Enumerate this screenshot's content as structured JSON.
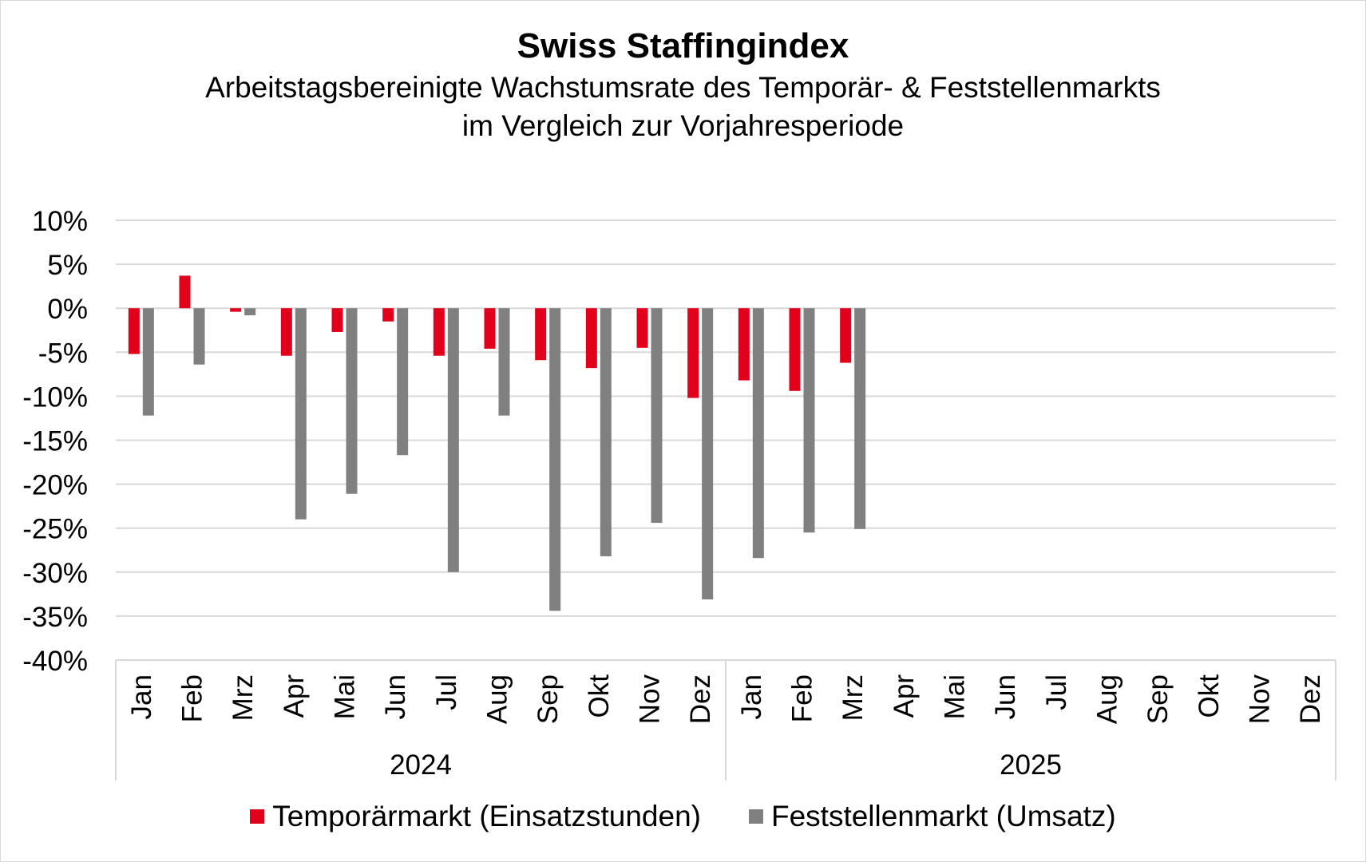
{
  "chart_data": {
    "type": "bar",
    "title": "Swiss Staffingindex",
    "subtitle_line1": "Arbeitstagsbereinigte Wachstumsrate des Temporär- & Feststellenmarkts",
    "subtitle_line2": "im Vergleich zur Vorjahresperiode",
    "categories": [
      "Jan",
      "Feb",
      "Mrz",
      "Apr",
      "Mai",
      "Jun",
      "Jul",
      "Aug",
      "Sep",
      "Okt",
      "Nov",
      "Dez",
      "Jan",
      "Feb",
      "Mrz",
      "Apr",
      "Mai",
      "Jun",
      "Jul",
      "Aug",
      "Sep",
      "Okt",
      "Nov",
      "Dez"
    ],
    "groups": [
      {
        "label": "2024",
        "count": 12
      },
      {
        "label": "2025",
        "count": 12
      }
    ],
    "series": [
      {
        "name": "Temporärmarkt (Einsatzstunden)",
        "color": "#e3001b",
        "values": [
          -5.2,
          3.7,
          -0.4,
          -5.4,
          -2.7,
          -1.5,
          -5.4,
          -4.6,
          -5.9,
          -6.8,
          -4.5,
          -10.2,
          -8.2,
          -9.4,
          -6.2,
          null,
          null,
          null,
          null,
          null,
          null,
          null,
          null,
          null
        ]
      },
      {
        "name": "Feststellenmarkt (Umsatz)",
        "color": "#808080",
        "values": [
          -12.2,
          -6.4,
          -0.8,
          -24.0,
          -21.1,
          -16.7,
          -30.0,
          -12.2,
          -34.4,
          -28.2,
          -24.4,
          -33.1,
          -28.4,
          -25.5,
          -25.1,
          null,
          null,
          null,
          null,
          null,
          null,
          null,
          null,
          null
        ]
      }
    ],
    "ylim": [
      -40,
      10
    ],
    "yticks": [
      10,
      5,
      0,
      -5,
      -10,
      -15,
      -20,
      -25,
      -30,
      -35,
      -40
    ],
    "ytick_labels": [
      "10%",
      "5%",
      "0%",
      "-5%",
      "-10%",
      "-15%",
      "-20%",
      "-25%",
      "-30%",
      "-35%",
      "-40%"
    ],
    "grid": true,
    "legend_position": "bottom"
  }
}
